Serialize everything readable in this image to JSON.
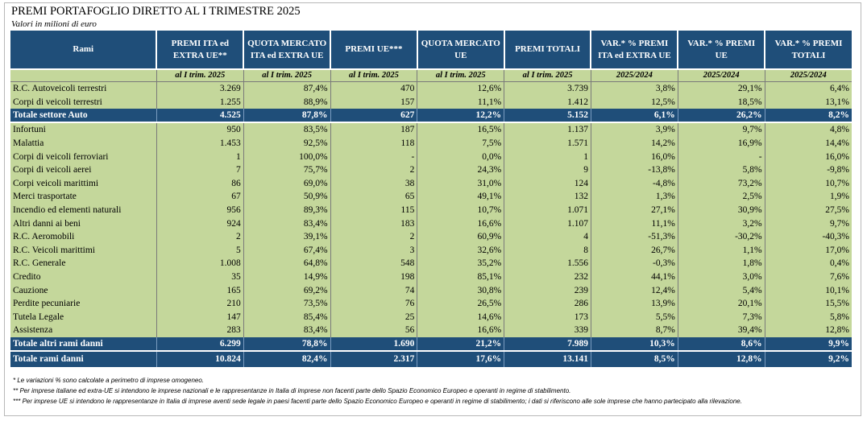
{
  "title": "PREMI PORTAFOGLIO DIRETTO AL I TRIMESTRE 2025",
  "subtitle": "Valori in milioni di euro",
  "columns": [
    "Rami",
    "PREMI ITA ed EXTRA UE**",
    "QUOTA MERCATO ITA ed EXTRA UE",
    "PREMI UE***",
    "QUOTA MERCATO UE",
    "PREMI TOTALI",
    "VAR.* % PREMI ITA ed EXTRA UE",
    "VAR.* % PREMI UE",
    "VAR.* % PREMI TOTALI"
  ],
  "subheaders": [
    "",
    "al I trim. 2025",
    "al I trim. 2025",
    "al I trim. 2025",
    "al I trim. 2025",
    "al I trim. 2025",
    "2025/2024",
    "2025/2024",
    "2025/2024"
  ],
  "auto_rows": [
    [
      "R.C. Autoveicoli terrestri",
      "3.269",
      "87,4%",
      "470",
      "12,6%",
      "3.739",
      "3,8%",
      "29,1%",
      "6,4%"
    ],
    [
      "Corpi di veicoli terrestri",
      "1.255",
      "88,9%",
      "157",
      "11,1%",
      "1.412",
      "12,5%",
      "18,5%",
      "13,1%"
    ]
  ],
  "auto_total": [
    "Totale settore Auto",
    "4.525",
    "87,8%",
    "627",
    "12,2%",
    "5.152",
    "6,1%",
    "26,2%",
    "8,2%"
  ],
  "other_rows": [
    [
      "Infortuni",
      "950",
      "83,5%",
      "187",
      "16,5%",
      "1.137",
      "3,9%",
      "9,7%",
      "4,8%"
    ],
    [
      "Malattia",
      "1.453",
      "92,5%",
      "118",
      "7,5%",
      "1.571",
      "14,2%",
      "16,9%",
      "14,4%"
    ],
    [
      "Corpi di veicoli ferroviari",
      "1",
      "100,0%",
      "-",
      "0,0%",
      "1",
      "16,0%",
      "-",
      "16,0%"
    ],
    [
      "Corpi di veicoli aerei",
      "7",
      "75,7%",
      "2",
      "24,3%",
      "9",
      "-13,8%",
      "5,8%",
      "-9,8%"
    ],
    [
      "Corpi veicoli marittimi",
      "86",
      "69,0%",
      "38",
      "31,0%",
      "124",
      "-4,8%",
      "73,2%",
      "10,7%"
    ],
    [
      "Merci trasportate",
      "67",
      "50,9%",
      "65",
      "49,1%",
      "132",
      "1,3%",
      "2,5%",
      "1,9%"
    ],
    [
      "Incendio ed elementi naturali",
      "956",
      "89,3%",
      "115",
      "10,7%",
      "1.071",
      "27,1%",
      "30,9%",
      "27,5%"
    ],
    [
      "Altri danni ai beni",
      "924",
      "83,4%",
      "183",
      "16,6%",
      "1.107",
      "11,1%",
      "3,2%",
      "9,7%"
    ],
    [
      "R.C. Aeromobili",
      "2",
      "39,1%",
      "2",
      "60,9%",
      "4",
      "-51,3%",
      "-30,2%",
      "-40,3%"
    ],
    [
      "R.C. Veicoli marittimi",
      "5",
      "67,4%",
      "3",
      "32,6%",
      "8",
      "26,7%",
      "1,1%",
      "17,0%"
    ],
    [
      "R.C. Generale",
      "1.008",
      "64,8%",
      "548",
      "35,2%",
      "1.556",
      "-0,3%",
      "1,8%",
      "0,4%"
    ],
    [
      "Credito",
      "35",
      "14,9%",
      "198",
      "85,1%",
      "232",
      "44,1%",
      "3,0%",
      "7,6%"
    ],
    [
      "Cauzione",
      "165",
      "69,2%",
      "74",
      "30,8%",
      "239",
      "12,4%",
      "5,4%",
      "10,1%"
    ],
    [
      "Perdite pecuniarie",
      "210",
      "73,5%",
      "76",
      "26,5%",
      "286",
      "13,9%",
      "20,1%",
      "15,5%"
    ],
    [
      "Tutela Legale",
      "147",
      "85,4%",
      "25",
      "14,6%",
      "173",
      "5,5%",
      "7,3%",
      "5,8%"
    ],
    [
      "Assistenza",
      "283",
      "83,4%",
      "56",
      "16,6%",
      "339",
      "8,7%",
      "39,4%",
      "12,8%"
    ]
  ],
  "other_total": [
    "Totale altri rami danni",
    "6.299",
    "78,8%",
    "1.690",
    "21,2%",
    "7.989",
    "10,3%",
    "8,6%",
    "9,9%"
  ],
  "grand_total": [
    "Totale rami danni",
    "10.824",
    "82,4%",
    "2.317",
    "17,6%",
    "13.141",
    "8,5%",
    "12,8%",
    "9,2%"
  ],
  "notes": [
    "* Le variazioni % sono calcolate a perimetro di imprese omogeneo.",
    "** Per imprese italiane ed extra-UE si intendono le imprese nazionali e le rappresentanze in Italia di imprese non facenti parte dello Spazio Economico Europeo e operanti in regime di stabilimento.",
    "*** Per imprese UE si intendono le rappresentanze in Italia di imprese aventi sede legale in paesi facenti parte dello Spazio Economico Europeo e operanti in regime di stabilimento; i dati si riferiscono alle sole imprese che hanno partecipato alla rilevazione."
  ]
}
